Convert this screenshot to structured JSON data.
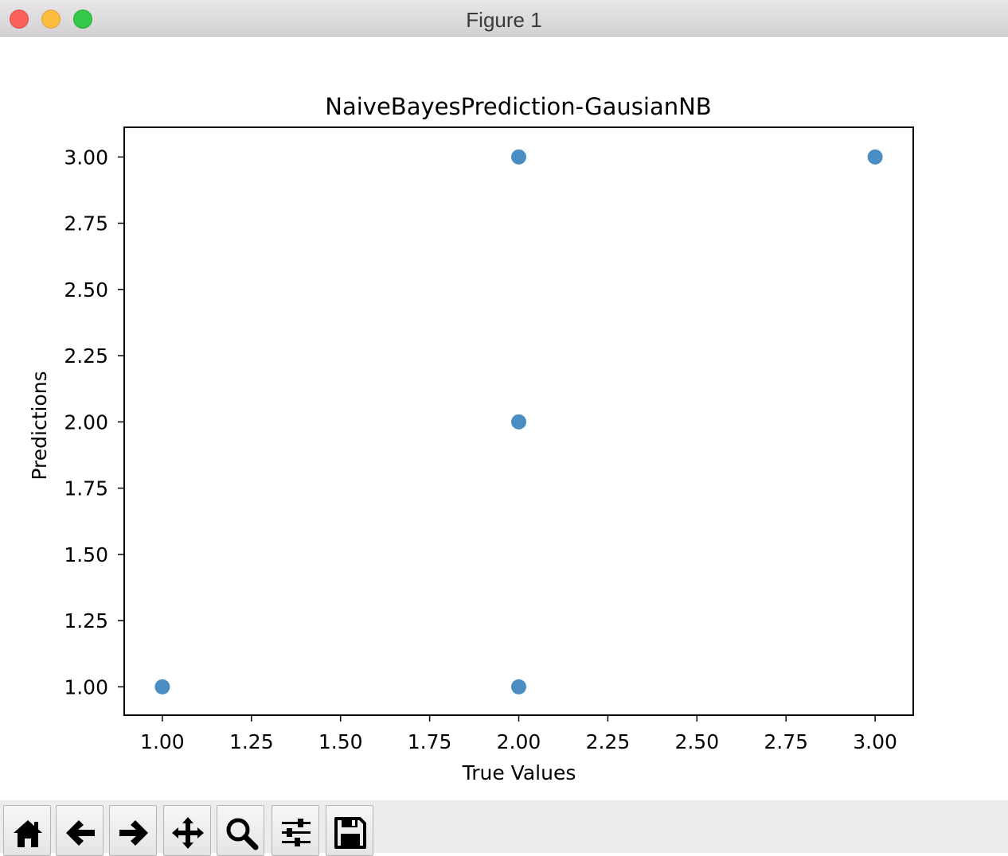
{
  "window": {
    "title": "Figure 1"
  },
  "toolbar": {
    "buttons": [
      {
        "name": "home-button",
        "icon": "home-icon"
      },
      {
        "name": "back-button",
        "icon": "arrow-left-icon"
      },
      {
        "name": "forward-button",
        "icon": "arrow-right-icon"
      },
      {
        "name": "pan-button",
        "icon": "move-icon"
      },
      {
        "name": "zoom-button",
        "icon": "magnifier-icon"
      },
      {
        "name": "configure-subplots-button",
        "icon": "sliders-icon"
      },
      {
        "name": "save-button",
        "icon": "floppy-disk-icon"
      }
    ]
  },
  "chart_data": {
    "type": "scatter",
    "title": "NaiveBayesPrediction-GausianNB",
    "xlabel": "True Values",
    "ylabel": "Predictions",
    "x": [
      1.0,
      2.0,
      2.0,
      2.0,
      3.0
    ],
    "y": [
      1.0,
      1.0,
      2.0,
      3.0,
      3.0
    ],
    "xlim": [
      0.893,
      3.107
    ],
    "ylim": [
      0.893,
      3.112
    ],
    "xticks": [
      1.0,
      1.25,
      1.5,
      1.75,
      2.0,
      2.25,
      2.5,
      2.75,
      3.0
    ],
    "xtick_labels": [
      "1.00",
      "1.25",
      "1.50",
      "1.75",
      "2.00",
      "2.25",
      "2.50",
      "2.75",
      "3.00"
    ],
    "yticks": [
      1.0,
      1.25,
      1.5,
      1.75,
      2.0,
      2.25,
      2.5,
      2.75,
      3.0
    ],
    "ytick_labels": [
      "1.00",
      "1.25",
      "1.50",
      "1.75",
      "2.00",
      "2.25",
      "2.50",
      "2.75",
      "3.00"
    ],
    "marker_color": "#3f87c0",
    "grid": false,
    "legend": "none"
  }
}
